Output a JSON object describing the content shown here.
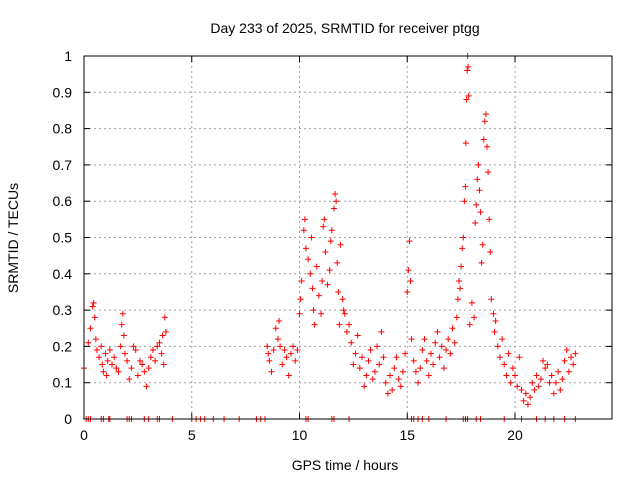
{
  "chart_data": {
    "type": "scatter",
    "title": "Day 233 of 2025, SRMTID for receiver ptgg",
    "xlabel": "GPS time / hours",
    "ylabel": "SRMTID / TECUs",
    "xlim": [
      0,
      24.5
    ],
    "ylim": [
      0,
      1
    ],
    "xticks": [
      "0",
      "5",
      "10",
      "15",
      "20"
    ],
    "yticks": [
      "0",
      "0.1",
      "0.2",
      "0.3",
      "0.4",
      "0.5",
      "0.6",
      "0.7",
      "0.8",
      "0.9",
      "1"
    ],
    "grid": true,
    "marker": "+",
    "series": [
      {
        "name": "SRMTID",
        "color": "#ff0000",
        "points": [
          [
            0.0,
            0.14
          ],
          [
            0.2,
            0.21
          ],
          [
            0.3,
            0.25
          ],
          [
            0.4,
            0.31
          ],
          [
            0.45,
            0.32
          ],
          [
            0.5,
            0.28
          ],
          [
            0.55,
            0.22
          ],
          [
            0.6,
            0.19
          ],
          [
            0.7,
            0.17
          ],
          [
            0.8,
            0.2
          ],
          [
            0.85,
            0.15
          ],
          [
            0.9,
            0.13
          ],
          [
            1.0,
            0.18
          ],
          [
            1.05,
            0.12
          ],
          [
            1.1,
            0.16
          ],
          [
            1.2,
            0.19
          ],
          [
            1.3,
            0.15
          ],
          [
            1.4,
            0.17
          ],
          [
            1.5,
            0.14
          ],
          [
            1.6,
            0.13
          ],
          [
            1.7,
            0.2
          ],
          [
            1.75,
            0.26
          ],
          [
            1.8,
            0.29
          ],
          [
            1.85,
            0.23
          ],
          [
            1.9,
            0.18
          ],
          [
            2.0,
            0.16
          ],
          [
            2.1,
            0.11
          ],
          [
            2.2,
            0.14
          ],
          [
            2.3,
            0.2
          ],
          [
            2.4,
            0.19
          ],
          [
            2.5,
            0.12
          ],
          [
            2.6,
            0.16
          ],
          [
            2.7,
            0.15
          ],
          [
            2.8,
            0.13
          ],
          [
            2.9,
            0.09
          ],
          [
            3.0,
            0.14
          ],
          [
            3.1,
            0.17
          ],
          [
            3.2,
            0.19
          ],
          [
            3.3,
            0.16
          ],
          [
            3.4,
            0.2
          ],
          [
            3.5,
            0.21
          ],
          [
            3.6,
            0.18
          ],
          [
            3.65,
            0.23
          ],
          [
            3.7,
            0.15
          ],
          [
            3.75,
            0.28
          ],
          [
            3.8,
            0.24
          ],
          [
            8.5,
            0.2
          ],
          [
            8.55,
            0.18
          ],
          [
            8.6,
            0.16
          ],
          [
            8.7,
            0.13
          ],
          [
            8.8,
            0.19
          ],
          [
            8.9,
            0.25
          ],
          [
            9.0,
            0.22
          ],
          [
            9.05,
            0.27
          ],
          [
            9.1,
            0.2
          ],
          [
            9.2,
            0.15
          ],
          [
            9.3,
            0.19
          ],
          [
            9.4,
            0.17
          ],
          [
            9.5,
            0.12
          ],
          [
            9.6,
            0.18
          ],
          [
            9.7,
            0.2
          ],
          [
            9.8,
            0.16
          ],
          [
            9.9,
            0.19
          ],
          [
            10.0,
            0.29
          ],
          [
            10.05,
            0.33
          ],
          [
            10.1,
            0.38
          ],
          [
            10.2,
            0.52
          ],
          [
            10.25,
            0.55
          ],
          [
            10.3,
            0.47
          ],
          [
            10.4,
            0.44
          ],
          [
            10.5,
            0.4
          ],
          [
            10.55,
            0.5
          ],
          [
            10.6,
            0.36
          ],
          [
            10.65,
            0.3
          ],
          [
            10.7,
            0.26
          ],
          [
            10.8,
            0.42
          ],
          [
            10.9,
            0.34
          ],
          [
            11.0,
            0.29
          ],
          [
            11.05,
            0.38
          ],
          [
            11.1,
            0.53
          ],
          [
            11.15,
            0.55
          ],
          [
            11.2,
            0.46
          ],
          [
            11.3,
            0.37
          ],
          [
            11.4,
            0.41
          ],
          [
            11.45,
            0.49
          ],
          [
            11.5,
            0.52
          ],
          [
            11.6,
            0.58
          ],
          [
            11.65,
            0.62
          ],
          [
            11.7,
            0.6
          ],
          [
            11.75,
            0.43
          ],
          [
            11.8,
            0.35
          ],
          [
            11.85,
            0.26
          ],
          [
            11.9,
            0.48
          ],
          [
            12.0,
            0.33
          ],
          [
            12.05,
            0.3
          ],
          [
            12.1,
            0.29
          ],
          [
            12.2,
            0.24
          ],
          [
            12.3,
            0.26
          ],
          [
            12.4,
            0.21
          ],
          [
            12.5,
            0.15
          ],
          [
            12.6,
            0.18
          ],
          [
            12.7,
            0.23
          ],
          [
            12.8,
            0.14
          ],
          [
            12.9,
            0.17
          ],
          [
            13.0,
            0.09
          ],
          [
            13.1,
            0.12
          ],
          [
            13.2,
            0.16
          ],
          [
            13.3,
            0.19
          ],
          [
            13.4,
            0.11
          ],
          [
            13.5,
            0.13
          ],
          [
            13.6,
            0.2
          ],
          [
            13.7,
            0.15
          ],
          [
            13.8,
            0.24
          ],
          [
            13.9,
            0.17
          ],
          [
            14.0,
            0.1
          ],
          [
            14.1,
            0.07
          ],
          [
            14.2,
            0.12
          ],
          [
            14.3,
            0.08
          ],
          [
            14.4,
            0.14
          ],
          [
            14.5,
            0.17
          ],
          [
            14.6,
            0.11
          ],
          [
            14.7,
            0.09
          ],
          [
            14.8,
            0.13
          ],
          [
            14.9,
            0.18
          ],
          [
            15.0,
            0.35
          ],
          [
            15.05,
            0.41
          ],
          [
            15.1,
            0.49
          ],
          [
            15.15,
            0.38
          ],
          [
            15.2,
            0.22
          ],
          [
            15.3,
            0.16
          ],
          [
            15.4,
            0.13
          ],
          [
            15.5,
            0.1
          ],
          [
            15.6,
            0.14
          ],
          [
            15.7,
            0.19
          ],
          [
            15.8,
            0.22
          ],
          [
            15.9,
            0.16
          ],
          [
            16.0,
            0.12
          ],
          [
            16.1,
            0.18
          ],
          [
            16.2,
            0.15
          ],
          [
            16.3,
            0.21
          ],
          [
            16.4,
            0.24
          ],
          [
            16.5,
            0.17
          ],
          [
            16.6,
            0.2
          ],
          [
            16.7,
            0.14
          ],
          [
            16.8,
            0.19
          ],
          [
            16.9,
            0.22
          ],
          [
            17.0,
            0.18
          ],
          [
            17.1,
            0.25
          ],
          [
            17.2,
            0.21
          ],
          [
            17.3,
            0.28
          ],
          [
            17.35,
            0.33
          ],
          [
            17.4,
            0.38
          ],
          [
            17.45,
            0.36
          ],
          [
            17.5,
            0.42
          ],
          [
            17.55,
            0.47
          ],
          [
            17.6,
            0.5
          ],
          [
            17.65,
            0.6
          ],
          [
            17.7,
            0.64
          ],
          [
            17.72,
            0.76
          ],
          [
            17.75,
            0.88
          ],
          [
            17.78,
            0.96
          ],
          [
            17.8,
            1.0
          ],
          [
            17.82,
            0.97
          ],
          [
            17.85,
            0.89
          ],
          [
            17.9,
            0.26
          ],
          [
            18.0,
            0.32
          ],
          [
            18.1,
            0.28
          ],
          [
            18.15,
            0.54
          ],
          [
            18.2,
            0.59
          ],
          [
            18.25,
            0.66
          ],
          [
            18.3,
            0.7
          ],
          [
            18.35,
            0.63
          ],
          [
            18.4,
            0.57
          ],
          [
            18.45,
            0.43
          ],
          [
            18.5,
            0.48
          ],
          [
            18.55,
            0.77
          ],
          [
            18.6,
            0.82
          ],
          [
            18.65,
            0.84
          ],
          [
            18.7,
            0.75
          ],
          [
            18.75,
            0.68
          ],
          [
            18.8,
            0.55
          ],
          [
            18.85,
            0.46
          ],
          [
            18.9,
            0.33
          ],
          [
            19.0,
            0.29
          ],
          [
            19.05,
            0.24
          ],
          [
            19.1,
            0.27
          ],
          [
            19.2,
            0.2
          ],
          [
            19.3,
            0.17
          ],
          [
            19.4,
            0.22
          ],
          [
            19.5,
            0.15
          ],
          [
            19.6,
            0.12
          ],
          [
            19.7,
            0.18
          ],
          [
            19.8,
            0.1
          ],
          [
            19.9,
            0.14
          ],
          [
            20.0,
            0.12
          ],
          [
            20.1,
            0.09
          ],
          [
            20.2,
            0.17
          ],
          [
            20.3,
            0.08
          ],
          [
            20.4,
            0.05
          ],
          [
            20.5,
            0.07
          ],
          [
            20.6,
            0.04
          ],
          [
            20.7,
            0.06
          ],
          [
            20.8,
            0.1
          ],
          [
            20.9,
            0.08
          ],
          [
            21.0,
            0.12
          ],
          [
            21.1,
            0.09
          ],
          [
            21.2,
            0.11
          ],
          [
            21.3,
            0.16
          ],
          [
            21.4,
            0.14
          ],
          [
            21.5,
            0.15
          ],
          [
            21.6,
            0.1
          ],
          [
            21.7,
            0.12
          ],
          [
            21.8,
            0.07
          ],
          [
            21.9,
            0.1
          ],
          [
            22.0,
            0.13
          ],
          [
            22.1,
            0.08
          ],
          [
            22.2,
            0.11
          ],
          [
            22.3,
            0.16
          ],
          [
            22.4,
            0.19
          ],
          [
            22.5,
            0.13
          ],
          [
            22.6,
            0.17
          ],
          [
            22.7,
            0.15
          ],
          [
            22.8,
            0.18
          ],
          [
            0.1,
            0.0
          ],
          [
            0.2,
            0.0
          ],
          [
            0.3,
            0.0
          ],
          [
            0.8,
            0.0
          ],
          [
            0.9,
            0.0
          ],
          [
            1.15,
            0.0
          ],
          [
            1.2,
            0.0
          ],
          [
            2.0,
            0.0
          ],
          [
            2.1,
            0.0
          ],
          [
            2.2,
            0.0
          ],
          [
            2.8,
            0.0
          ],
          [
            3.0,
            0.0
          ],
          [
            3.4,
            0.0
          ],
          [
            3.5,
            0.0
          ],
          [
            4.1,
            0.0
          ],
          [
            5.0,
            0.0
          ],
          [
            5.2,
            0.0
          ],
          [
            5.4,
            0.0
          ],
          [
            5.6,
            0.0
          ],
          [
            6.0,
            0.0
          ],
          [
            6.5,
            0.0
          ],
          [
            7.2,
            0.0
          ],
          [
            8.0,
            0.0
          ],
          [
            8.2,
            0.0
          ],
          [
            8.4,
            0.0
          ],
          [
            10.3,
            0.0
          ],
          [
            10.4,
            0.0
          ],
          [
            11.5,
            0.0
          ],
          [
            11.6,
            0.0
          ],
          [
            12.3,
            0.0
          ],
          [
            15.2,
            0.0
          ],
          [
            15.3,
            0.0
          ],
          [
            15.5,
            0.0
          ],
          [
            15.7,
            0.0
          ],
          [
            16.0,
            0.0
          ],
          [
            16.8,
            0.0
          ],
          [
            17.6,
            0.0
          ],
          [
            17.7,
            0.0
          ],
          [
            17.8,
            0.0
          ],
          [
            18.2,
            0.0
          ],
          [
            18.4,
            0.0
          ],
          [
            19.5,
            0.0
          ],
          [
            20.3,
            0.0
          ],
          [
            21.0,
            0.0
          ],
          [
            21.4,
            0.0
          ],
          [
            21.8,
            0.0
          ],
          [
            22.3,
            0.0
          ],
          [
            22.8,
            0.0
          ]
        ]
      }
    ]
  }
}
